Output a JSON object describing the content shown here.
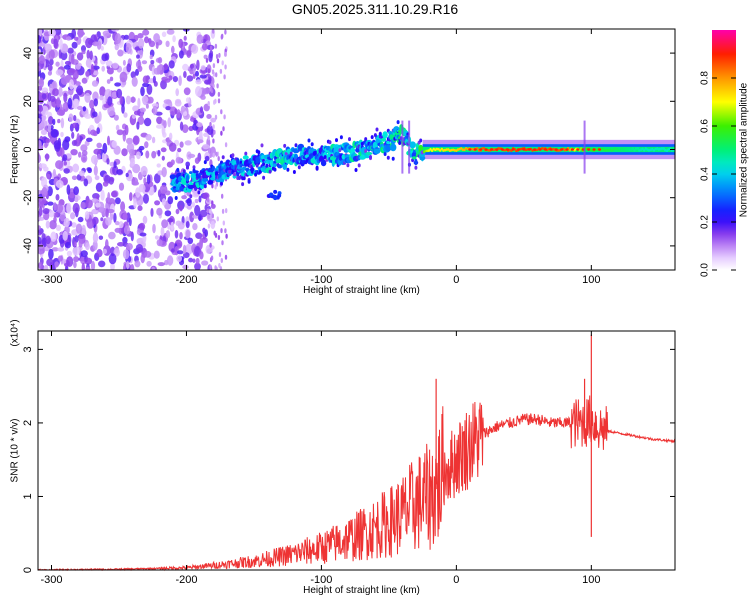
{
  "title": "GN05.2025.311.10.29.R16",
  "chart_data": [
    {
      "type": "heatmap",
      "xlabel": "Height of straight line (km)",
      "ylabel": "Frequency (Hz)",
      "xlim": [
        -310,
        162
      ],
      "ylim": [
        -50,
        50
      ],
      "x_ticks": [
        -300,
        -200,
        -100,
        0,
        100
      ],
      "y_ticks": [
        -40,
        -20,
        0,
        20,
        40
      ],
      "colorbar": {
        "label": "Normalized spectral amplitude",
        "range": [
          0,
          1
        ],
        "ticks": [
          0.0,
          0.2,
          0.4,
          0.6,
          0.8
        ],
        "tick_labels": [
          "0.0",
          "0.2",
          "0.4",
          "0.6",
          "0.8"
        ]
      },
      "ridge": [
        {
          "x": -205,
          "f": -14,
          "a": 0.45
        },
        {
          "x": -190,
          "f": -12,
          "a": 0.45
        },
        {
          "x": -175,
          "f": -10,
          "a": 0.4
        },
        {
          "x": -160,
          "f": -7,
          "a": 0.45
        },
        {
          "x": -145,
          "f": -6,
          "a": 0.45
        },
        {
          "x": -130,
          "f": -4,
          "a": 0.5
        },
        {
          "x": -115,
          "f": -2,
          "a": 0.45
        },
        {
          "x": -100,
          "f": -3,
          "a": 0.45
        },
        {
          "x": -85,
          "f": -2,
          "a": 0.5
        },
        {
          "x": -70,
          "f": 0,
          "a": 0.5
        },
        {
          "x": -55,
          "f": 2,
          "a": 0.5
        },
        {
          "x": -40,
          "f": 6,
          "a": 0.55
        },
        {
          "x": -30,
          "f": -2,
          "a": 0.5
        },
        {
          "x": -20,
          "f": 0,
          "a": 0.7
        },
        {
          "x": 0,
          "f": 0,
          "a": 0.75
        },
        {
          "x": 20,
          "f": 0,
          "a": 0.85
        },
        {
          "x": 50,
          "f": 0,
          "a": 0.88
        },
        {
          "x": 80,
          "f": 0,
          "a": 0.85
        },
        {
          "x": 95,
          "f": 0,
          "a": 0.6
        },
        {
          "x": 110,
          "f": 0,
          "a": 0.55
        },
        {
          "x": 140,
          "f": 0,
          "a": 0.45
        },
        {
          "x": 162,
          "f": 0,
          "a": 0.45
        }
      ]
    },
    {
      "type": "line",
      "xlabel": "Height of straight line (km)",
      "ylabel": "SNR (10 * v/v)",
      "y_scale_label": "(x10⁴)",
      "xlim": [
        -310,
        162
      ],
      "ylim": [
        0,
        3.25
      ],
      "x_ticks": [
        -300,
        -200,
        -100,
        0,
        100
      ],
      "y_ticks": [
        0,
        1,
        2,
        3
      ],
      "series": [
        {
          "name": "SNR",
          "color": "#ee3333",
          "x": [
            -310,
            -250,
            -200,
            -175,
            -150,
            -125,
            -100,
            -75,
            -50,
            -40,
            -30,
            -20,
            -15,
            -10,
            0,
            10,
            20,
            30,
            40,
            50,
            60,
            70,
            80,
            90,
            95,
            100,
            105,
            110,
            115,
            130,
            145,
            162
          ],
          "y": [
            0.0,
            0.01,
            0.03,
            0.07,
            0.12,
            0.2,
            0.3,
            0.45,
            0.65,
            0.75,
            0.9,
            1.0,
            1.1,
            1.3,
            1.5,
            1.7,
            1.85,
            1.95,
            2.0,
            2.05,
            2.05,
            2.0,
            2.0,
            2.0,
            2.0,
            2.05,
            1.95,
            1.9,
            1.88,
            1.83,
            1.78,
            1.75
          ]
        }
      ],
      "peaks": [
        {
          "x": -15,
          "y": 2.6
        },
        {
          "x": 95,
          "y": 2.6
        },
        {
          "x": 100,
          "y": 3.2
        },
        {
          "x": 100,
          "y": 0.45
        }
      ]
    }
  ]
}
